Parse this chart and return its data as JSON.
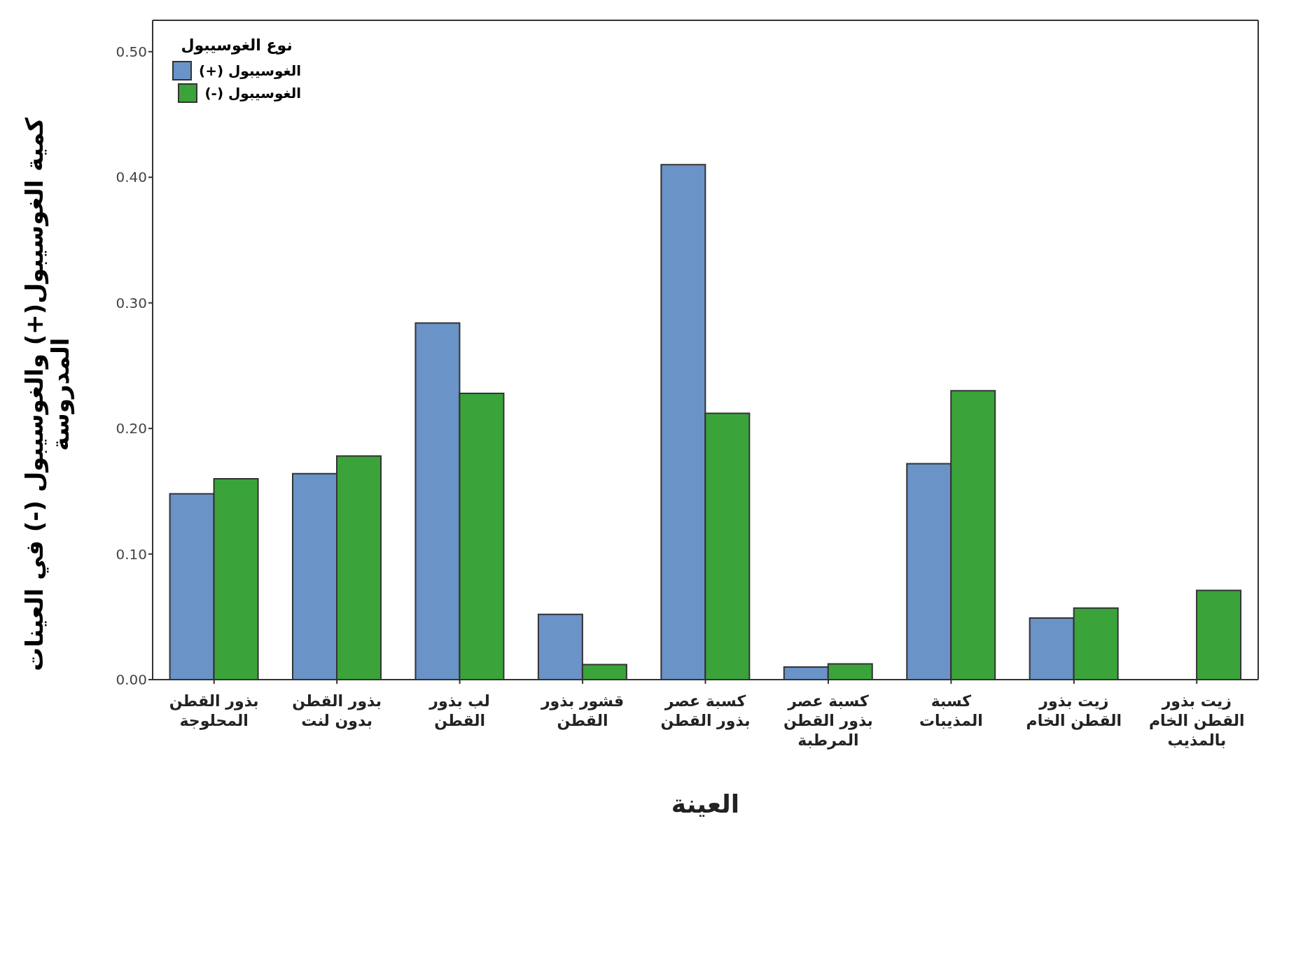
{
  "chart_data": {
    "type": "bar",
    "xlabel": "العينة",
    "ylabel": "كمية الغوسيبول(+) والغوسيبول (-) في العينات المدروسة",
    "legend_title": "نوع الغوسيبول",
    "legend": "top left",
    "categories": [
      "بذور القطن المحلوجة",
      "بذور القطن بدون لنت",
      "لب بذور القطن",
      "قشور بذور القطن",
      "كسبة عصر بذور القطن",
      "كسبة عصر بذور القطن المرطبة",
      "كسبة المذيبات",
      "زيت بذور القطن الخام",
      "زيت بذور القطن الخام بالمذيب"
    ],
    "series": [
      {
        "name": "الغوسيبول (+)",
        "color": "#6a93c8",
        "values": [
          0.148,
          0.164,
          0.284,
          0.052,
          0.41,
          0.01,
          0.172,
          0.049,
          null
        ]
      },
      {
        "name": "الغوسيبول (-)",
        "color": "#3aa43a",
        "values": [
          0.16,
          0.178,
          0.228,
          0.012,
          0.212,
          0.0125,
          0.23,
          0.057,
          0.071
        ]
      }
    ],
    "ylim": [
      0,
      0.525
    ],
    "yticks": [
      {
        "value": 0,
        "label": "0.00"
      },
      {
        "value": 0.1,
        "label": "0.10"
      },
      {
        "value": 0.2,
        "label": "0.20"
      },
      {
        "value": 0.3,
        "label": "0.30"
      },
      {
        "value": 0.4,
        "label": "0.40"
      },
      {
        "value": 0.5,
        "label": "0.50"
      }
    ],
    "grid": false
  }
}
